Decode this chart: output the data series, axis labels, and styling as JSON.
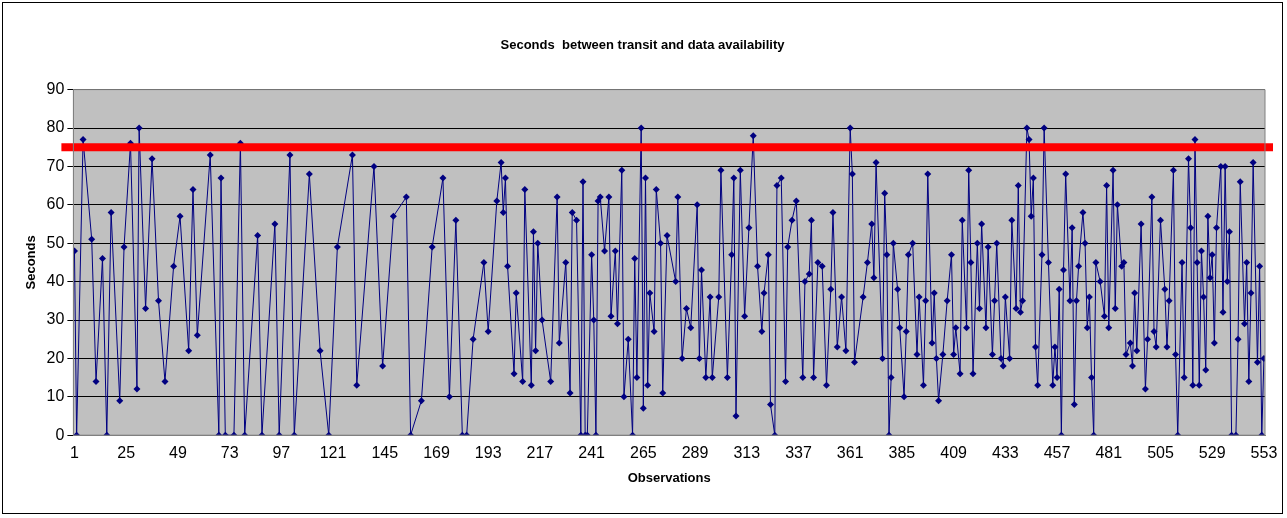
{
  "chart_data": {
    "type": "line",
    "title": "Seconds  between transit and data availability",
    "xlabel": "Observations",
    "ylabel": "Seconds",
    "xlim": [
      0.5,
      553.5
    ],
    "xticks": [
      1,
      25,
      49,
      73,
      97,
      121,
      145,
      169,
      193,
      217,
      241,
      265,
      289,
      313,
      337,
      361,
      385,
      409,
      433,
      457,
      481,
      505,
      529,
      553
    ],
    "ylim": [
      0,
      90
    ],
    "yticks": [
      0,
      10,
      20,
      30,
      40,
      50,
      60,
      70,
      80,
      90
    ],
    "grid": "y",
    "marker": "diamond",
    "line_style": "solid",
    "ref_lines": [
      {
        "axis": "y",
        "value": 75,
        "color": "#ff0000"
      }
    ],
    "series": [
      {
        "color": "#000080",
        "x": [
          1,
          2,
          5,
          9,
          11,
          14,
          16,
          18,
          22,
          24,
          27,
          30,
          31,
          34,
          37,
          40,
          43,
          47,
          50,
          54,
          56,
          58,
          64,
          68,
          69,
          71,
          75,
          78,
          80,
          86,
          88,
          94,
          96,
          101,
          103,
          110,
          115,
          119,
          123,
          130,
          132,
          140,
          144,
          149,
          155,
          157,
          162,
          167,
          172,
          175,
          178,
          181,
          183,
          186,
          191,
          193,
          197,
          199,
          200,
          201,
          202,
          205,
          206,
          209,
          210,
          213,
          214,
          215,
          216,
          218,
          222,
          225,
          226,
          229,
          231,
          232,
          234,
          236,
          237,
          238,
          239,
          241,
          242,
          243,
          244,
          245,
          247,
          249,
          250,
          252,
          253,
          255,
          256,
          258,
          260,
          261,
          262,
          264,
          265,
          266,
          267,
          268,
          270,
          271,
          273,
          274,
          276,
          280,
          281,
          283,
          285,
          287,
          290,
          291,
          292,
          294,
          296,
          297,
          300,
          301,
          304,
          306,
          307,
          308,
          310,
          312,
          314,
          316,
          318,
          320,
          321,
          323,
          324,
          326,
          327,
          329,
          331,
          332,
          334,
          336,
          339,
          340,
          342,
          343,
          344,
          346,
          348,
          350,
          352,
          353,
          355,
          357,
          359,
          361,
          362,
          363,
          367,
          369,
          371,
          372,
          373,
          376,
          377,
          378,
          379,
          380,
          381,
          383,
          384,
          386,
          387,
          388,
          390,
          392,
          393,
          395,
          396,
          397,
          399,
          400,
          401,
          402,
          404,
          406,
          408,
          409,
          410,
          412,
          413,
          415,
          416,
          417,
          418,
          420,
          421,
          422,
          424,
          425,
          427,
          428,
          429,
          431,
          432,
          433,
          435,
          436,
          438,
          439,
          440,
          441,
          443,
          444,
          445,
          446,
          447,
          448,
          450,
          451,
          453,
          455,
          456,
          457,
          458,
          459,
          460,
          461,
          463,
          464,
          465,
          466,
          467,
          469,
          470,
          471,
          472,
          473,
          474,
          475,
          477,
          479,
          480,
          481,
          483,
          484,
          485,
          487,
          488,
          489,
          491,
          492,
          493,
          494,
          496,
          498,
          499,
          501,
          502,
          503,
          505,
          507,
          508,
          509,
          511,
          512,
          513,
          515,
          516,
          518,
          519,
          520,
          521,
          522,
          523,
          524,
          525,
          526,
          527,
          528,
          529,
          530,
          531,
          533,
          534,
          535,
          536,
          537,
          538,
          540,
          541,
          542,
          544,
          545,
          546,
          547,
          548,
          550,
          551,
          552,
          553
        ],
        "values": [
          48,
          0,
          77,
          51,
          14,
          46,
          0,
          58,
          9,
          49,
          76,
          12,
          80,
          33,
          72,
          35,
          14,
          44,
          57,
          22,
          64,
          26,
          73,
          0,
          67,
          0,
          0,
          76,
          0,
          52,
          0,
          55,
          0,
          73,
          0,
          68,
          22,
          0,
          49,
          73,
          13,
          70,
          18,
          57,
          62,
          0,
          9,
          49,
          67,
          10,
          56,
          0,
          0,
          25,
          45,
          27,
          61,
          71,
          58,
          67,
          44,
          16,
          37,
          14,
          64,
          13,
          53,
          22,
          50,
          30,
          14,
          62,
          24,
          45,
          11,
          58,
          56,
          0,
          66,
          0,
          0,
          47,
          30,
          0,
          61,
          62,
          48,
          62,
          31,
          48,
          29,
          69,
          10,
          25,
          0,
          46,
          15,
          80,
          7,
          67,
          13,
          37,
          27,
          64,
          50,
          11,
          52,
          40,
          62,
          20,
          33,
          28,
          60,
          20,
          43,
          15,
          36,
          15,
          36,
          69,
          15,
          47,
          67,
          5,
          69,
          31,
          54,
          78,
          44,
          27,
          37,
          47,
          8,
          0,
          65,
          67,
          14,
          49,
          56,
          61,
          15,
          40,
          42,
          56,
          15,
          45,
          44,
          13,
          38,
          58,
          23,
          36,
          22,
          80,
          68,
          19,
          36,
          45,
          55,
          41,
          71,
          20,
          63,
          47,
          0,
          15,
          50,
          38,
          28,
          10,
          27,
          47,
          50,
          21,
          36,
          13,
          35,
          68,
          24,
          37,
          20,
          9,
          21,
          35,
          47,
          21,
          28,
          16,
          56,
          28,
          69,
          45,
          16,
          50,
          33,
          55,
          28,
          49,
          21,
          35,
          50,
          20,
          18,
          36,
          20,
          56,
          33,
          65,
          32,
          35,
          80,
          77,
          57,
          67,
          23,
          13,
          47,
          80,
          45,
          13,
          23,
          15,
          38,
          0,
          43,
          68,
          35,
          54,
          8,
          35,
          44,
          58,
          50,
          28,
          36,
          15,
          0,
          45,
          40,
          31,
          65,
          28,
          69,
          33,
          60,
          44,
          45,
          21,
          24,
          18,
          37,
          22,
          55,
          12,
          25,
          62,
          27,
          23,
          56,
          38,
          23,
          35,
          69,
          21,
          0,
          45,
          15,
          72,
          54,
          13,
          77,
          45,
          13,
          48,
          36,
          17,
          57,
          41,
          47,
          24,
          54,
          70,
          32,
          70,
          40,
          53,
          0,
          0,
          25,
          66,
          29,
          45,
          14,
          37,
          71,
          19,
          44,
          0,
          20
        ]
      }
    ]
  }
}
